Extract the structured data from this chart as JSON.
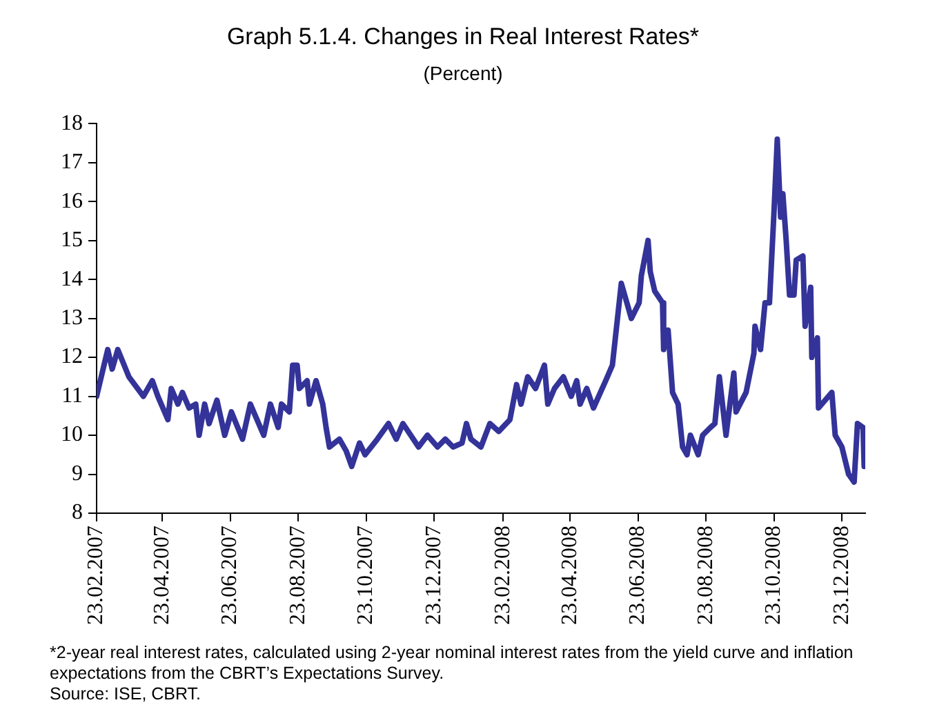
{
  "chart_data": {
    "type": "line",
    "title": "Graph 5.1.4. Changes in Real Interest Rates*",
    "subtitle": "(Percent)",
    "annotations": [
      "*2-year real interest rates, calculated using 2-year nominal interest rates from the yield curve and inflation expectations from the CBRT’s Expectations Survey.",
      "Source: ISE, CBRT."
    ],
    "x": [
      "2007-02-23",
      "2007-03-05",
      "2007-03-09",
      "2007-03-14",
      "2007-03-24",
      "2007-04-06",
      "2007-04-14",
      "2007-04-19",
      "2007-04-28",
      "2007-05-01",
      "2007-05-07",
      "2007-05-11",
      "2007-05-17",
      "2007-05-23",
      "2007-05-26",
      "2007-05-31",
      "2007-06-04",
      "2007-06-11",
      "2007-06-18",
      "2007-06-24",
      "2007-07-04",
      "2007-07-11",
      "2007-07-23",
      "2007-07-29",
      "2007-08-05",
      "2007-08-08",
      "2007-08-15",
      "2007-08-18",
      "2007-08-22",
      "2007-08-24",
      "2007-08-31",
      "2007-09-02",
      "2007-09-08",
      "2007-09-14",
      "2007-09-17",
      "2007-09-20",
      "2007-09-29",
      "2007-10-05",
      "2007-10-10",
      "2007-10-17",
      "2007-10-22",
      "2007-11-02",
      "2007-11-12",
      "2007-11-19",
      "2007-11-25",
      "2007-12-09",
      "2007-12-17",
      "2007-12-26",
      "2008-01-02",
      "2008-01-09",
      "2008-01-17",
      "2008-01-21",
      "2008-01-25",
      "2008-02-03",
      "2008-02-11",
      "2008-02-19",
      "2008-02-29",
      "2008-03-06",
      "2008-03-10",
      "2008-03-16",
      "2008-03-23",
      "2008-03-31",
      "2008-04-03",
      "2008-04-09",
      "2008-04-17",
      "2008-04-24",
      "2008-04-29",
      "2008-05-02",
      "2008-05-08",
      "2008-05-14",
      "2008-05-25",
      "2008-05-31",
      "2008-06-08",
      "2008-06-17",
      "2008-06-24",
      "2008-06-26",
      "2008-07-02",
      "2008-07-04",
      "2008-07-08",
      "2008-07-15",
      "2008-07-16",
      "2008-07-20",
      "2008-07-24",
      "2008-07-29",
      "2008-08-02",
      "2008-08-06",
      "2008-08-09",
      "2008-08-16",
      "2008-08-20",
      "2008-08-27",
      "2008-08-31",
      "2008-09-04",
      "2008-09-06",
      "2008-09-10",
      "2008-09-17",
      "2008-09-19",
      "2008-09-28",
      "2008-10-05",
      "2008-10-06",
      "2008-10-11",
      "2008-10-15",
      "2008-10-19",
      "2008-10-23",
      "2008-10-26",
      "2008-10-29",
      "2008-10-31",
      "2008-11-03",
      "2008-11-06",
      "2008-11-10",
      "2008-11-12",
      "2008-11-18",
      "2008-11-20",
      "2008-11-25",
      "2008-11-26",
      "2008-12-01",
      "2008-12-02",
      "2008-12-14",
      "2008-12-17",
      "2008-12-23",
      "2008-12-29",
      "2009-01-03",
      "2009-01-06",
      "2009-01-11",
      "2009-01-12"
    ],
    "series": [
      {
        "color": "#333399",
        "values": [
          11.0,
          12.2,
          11.7,
          12.2,
          11.5,
          11.0,
          11.4,
          11.0,
          10.4,
          11.2,
          10.8,
          11.1,
          10.7,
          10.8,
          10.0,
          10.8,
          10.3,
          10.9,
          10.0,
          10.6,
          9.9,
          10.8,
          10.0,
          10.8,
          10.2,
          10.8,
          10.6,
          11.8,
          11.8,
          11.2,
          11.4,
          10.8,
          11.4,
          10.8,
          10.2,
          9.7,
          9.9,
          9.6,
          9.2,
          9.8,
          9.5,
          9.9,
          10.3,
          9.9,
          10.3,
          9.7,
          10.0,
          9.7,
          9.9,
          9.7,
          9.8,
          10.3,
          9.9,
          9.7,
          10.3,
          10.1,
          10.4,
          11.3,
          10.8,
          11.5,
          11.2,
          11.8,
          10.8,
          11.2,
          11.5,
          11.0,
          11.4,
          10.8,
          11.2,
          10.7,
          11.4,
          11.8,
          13.9,
          13.0,
          13.4,
          14.1,
          15.0,
          14.2,
          13.7,
          13.4,
          12.2,
          12.7,
          11.1,
          10.8,
          9.7,
          9.5,
          10.0,
          9.5,
          10.0,
          10.2,
          10.3,
          11.5,
          11.0,
          10.0,
          11.6,
          10.6,
          11.1,
          12.1,
          12.8,
          12.2,
          13.4,
          13.4,
          15.7,
          17.6,
          15.6,
          16.2,
          15.0,
          13.6,
          13.6,
          14.5,
          14.6,
          12.8,
          13.8,
          12.0,
          12.5,
          10.7,
          11.1,
          10.0,
          9.7,
          9.0,
          8.8,
          10.3,
          10.2,
          9.2
        ]
      }
    ],
    "xlim": [
      "2007-02-23",
      "2009-01-13"
    ],
    "xticks": [
      {
        "value": "2007-02-23",
        "label": "23.02.2007"
      },
      {
        "value": "2007-04-23",
        "label": "23.04.2007"
      },
      {
        "value": "2007-06-23",
        "label": "23.06.2007"
      },
      {
        "value": "2007-08-23",
        "label": "23.08.2007"
      },
      {
        "value": "2007-10-23",
        "label": "23.10.2007"
      },
      {
        "value": "2007-12-23",
        "label": "23.12.2007"
      },
      {
        "value": "2008-02-23",
        "label": "23.02.2008"
      },
      {
        "value": "2008-04-23",
        "label": "23.04.2008"
      },
      {
        "value": "2008-06-23",
        "label": "23.06.2008"
      },
      {
        "value": "2008-08-23",
        "label": "23.08.2008"
      },
      {
        "value": "2008-10-23",
        "label": "23.10.2008"
      },
      {
        "value": "2008-12-23",
        "label": "23.12.2008"
      }
    ],
    "ylim": [
      8,
      18
    ],
    "yticks": [
      8,
      9,
      10,
      11,
      12,
      13,
      14,
      15,
      16,
      17,
      18
    ],
    "grid": false,
    "legend": false,
    "marker": "none",
    "line_style": "solid"
  }
}
